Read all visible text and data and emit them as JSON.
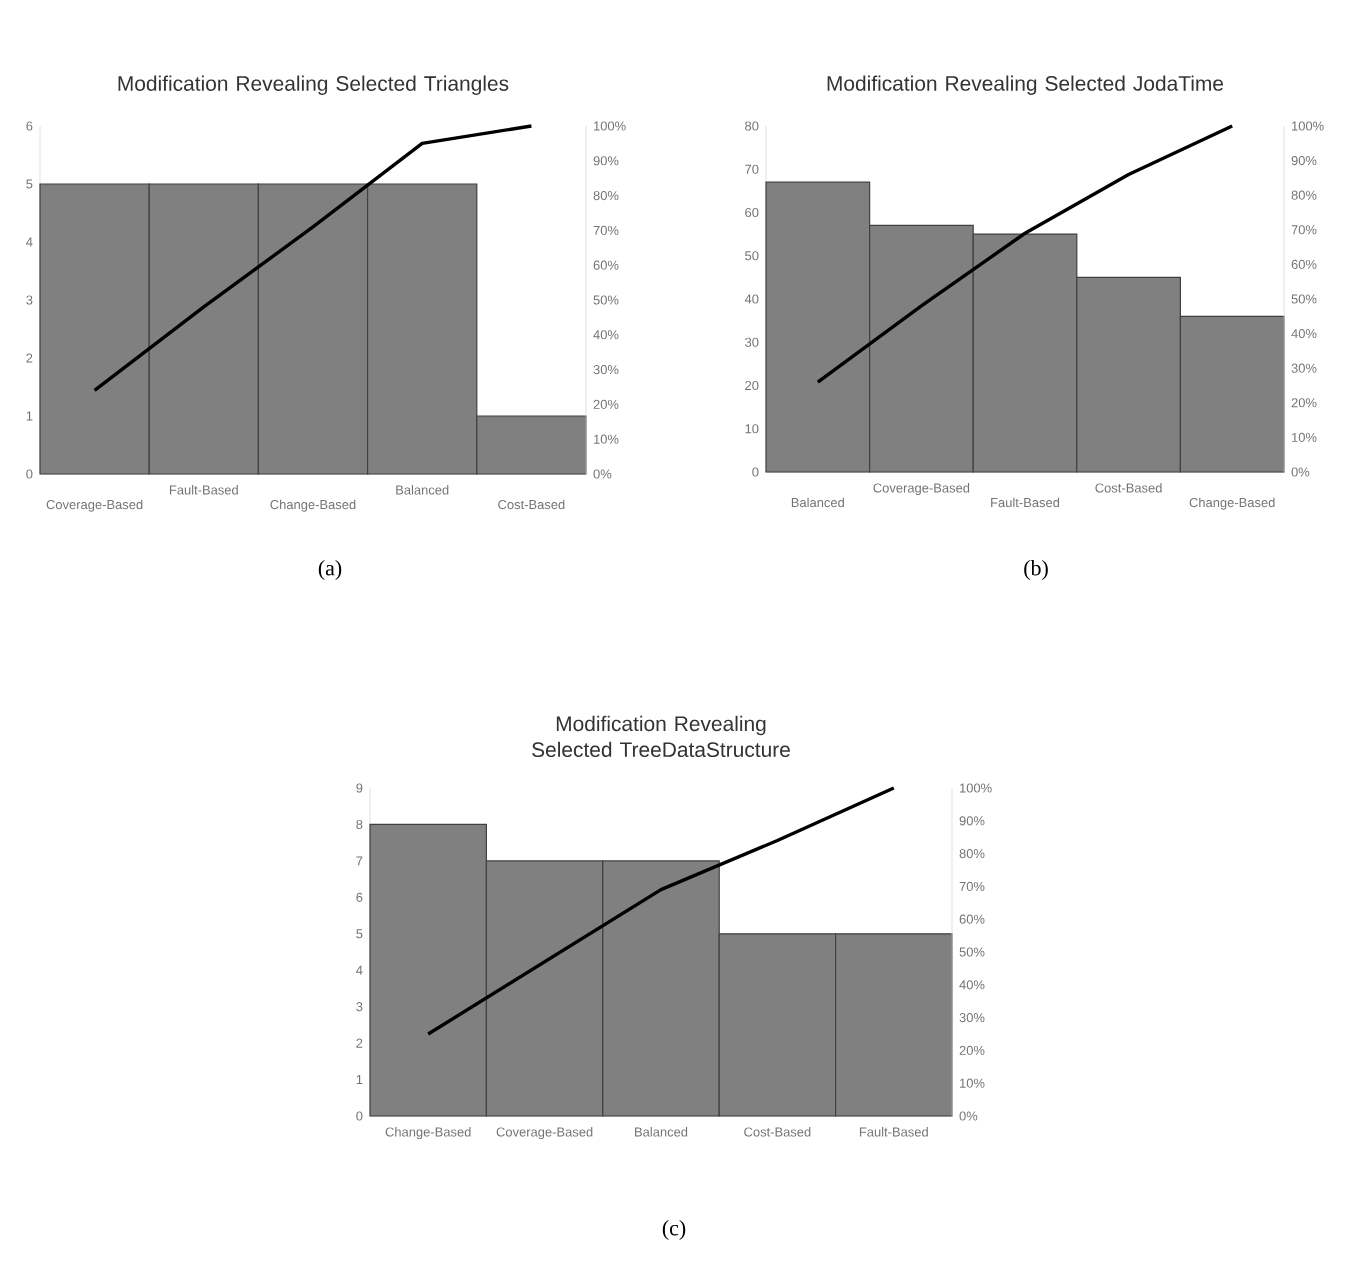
{
  "chart_data": [
    {
      "type": "bar",
      "title": "Modification Revealing Selected Triangles",
      "categories": [
        "Coverage-Based",
        "Fault-Based",
        "Change-Based",
        "Balanced",
        "Cost-Based"
      ],
      "series": [
        {
          "color": "#808080",
          "values": [
            5,
            5,
            5,
            5,
            1
          ]
        },
        {
          "type": "line",
          "axis": "y2",
          "color": "#000000",
          "values": [
            24,
            48,
            71,
            95,
            100
          ]
        }
      ],
      "ylim": [
        0,
        6
      ],
      "yticks": [
        0,
        1,
        2,
        3,
        4,
        5,
        6
      ],
      "y2lim": [
        0,
        100
      ],
      "y2ticks": [
        {
          "value": 0,
          "label": "0%"
        },
        {
          "value": 10,
          "label": "10%"
        },
        {
          "value": 20,
          "label": "20%"
        },
        {
          "value": 30,
          "label": "30%"
        },
        {
          "value": 40,
          "label": "40%"
        },
        {
          "value": 50,
          "label": "50%"
        },
        {
          "value": 60,
          "label": "60%"
        },
        {
          "value": 70,
          "label": "70%"
        },
        {
          "value": 80,
          "label": "80%"
        },
        {
          "value": 90,
          "label": "90%"
        },
        {
          "value": 100,
          "label": "100%"
        }
      ],
      "annotations": [
        "(a)"
      ]
    },
    {
      "type": "bar",
      "title": "Modification Revealing Selected JodaTime",
      "categories": [
        "Balanced",
        "Coverage-Based",
        "Fault-Based",
        "Cost-Based",
        "Change-Based"
      ],
      "series": [
        {
          "color": "#808080",
          "values": [
            67,
            57,
            55,
            45,
            36
          ]
        },
        {
          "type": "line",
          "axis": "y2",
          "color": "#000000",
          "values": [
            26,
            48,
            69,
            86,
            100
          ]
        }
      ],
      "ylim": [
        0,
        80
      ],
      "yticks": [
        0,
        10,
        20,
        30,
        40,
        50,
        60,
        70,
        80
      ],
      "y2lim": [
        0,
        100
      ],
      "y2ticks": [
        {
          "value": 0,
          "label": "0%"
        },
        {
          "value": 10,
          "label": "10%"
        },
        {
          "value": 20,
          "label": "20%"
        },
        {
          "value": 30,
          "label": "30%"
        },
        {
          "value": 40,
          "label": "40%"
        },
        {
          "value": 50,
          "label": "50%"
        },
        {
          "value": 60,
          "label": "60%"
        },
        {
          "value": 70,
          "label": "70%"
        },
        {
          "value": 80,
          "label": "80%"
        },
        {
          "value": 90,
          "label": "90%"
        },
        {
          "value": 100,
          "label": "100%"
        }
      ],
      "annotations": [
        "(b)"
      ]
    },
    {
      "type": "bar",
      "title": "Modification Revealing Selected TreeDataStructure",
      "categories": [
        "Change-Based",
        "Coverage-Based",
        "Balanced",
        "Cost-Based",
        "Fault-Based"
      ],
      "series": [
        {
          "color": "#808080",
          "values": [
            8,
            7,
            7,
            5,
            5
          ]
        },
        {
          "type": "line",
          "axis": "y2",
          "color": "#000000",
          "values": [
            25,
            47,
            69,
            84,
            100
          ]
        }
      ],
      "ylim": [
        0,
        9
      ],
      "yticks": [
        0,
        1,
        2,
        3,
        4,
        5,
        6,
        7,
        8,
        9
      ],
      "y2lim": [
        0,
        100
      ],
      "y2ticks": [
        {
          "value": 0,
          "label": "0%"
        },
        {
          "value": 10,
          "label": "10%"
        },
        {
          "value": 20,
          "label": "20%"
        },
        {
          "value": 30,
          "label": "30%"
        },
        {
          "value": 40,
          "label": "40%"
        },
        {
          "value": 50,
          "label": "50%"
        },
        {
          "value": 60,
          "label": "60%"
        },
        {
          "value": 70,
          "label": "70%"
        },
        {
          "value": 80,
          "label": "80%"
        },
        {
          "value": 90,
          "label": "90%"
        },
        {
          "value": 100,
          "label": "100%"
        }
      ],
      "annotations": [
        "(c)"
      ]
    }
  ]
}
